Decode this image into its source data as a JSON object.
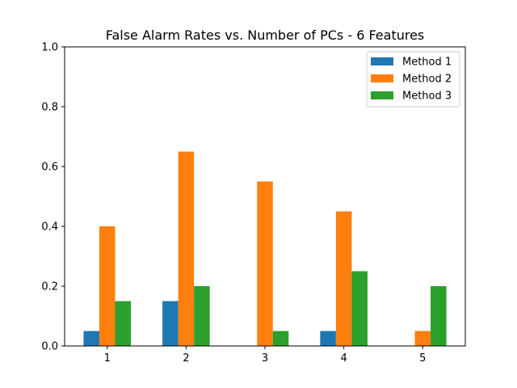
{
  "chart_data": {
    "type": "bar",
    "title": "False Alarm Rates vs. Number of PCs - 6 Features",
    "xlabel": "",
    "ylabel": "",
    "categories": [
      "1",
      "2",
      "3",
      "4",
      "5"
    ],
    "ylim": [
      0,
      1.0
    ],
    "yticks": [
      "0.0",
      "0.2",
      "0.4",
      "0.6",
      "0.8",
      "1.0"
    ],
    "grid": false,
    "legend_position": "top-right",
    "series": [
      {
        "name": "Method 1",
        "color": "#1f77b4",
        "values": [
          0.05,
          0.15,
          0.0,
          0.05,
          0.0
        ]
      },
      {
        "name": "Method 2",
        "color": "#ff7f0e",
        "values": [
          0.4,
          0.65,
          0.55,
          0.45,
          0.05
        ]
      },
      {
        "name": "Method 3",
        "color": "#2ca02c",
        "values": [
          0.15,
          0.2,
          0.05,
          0.25,
          0.2
        ]
      }
    ]
  }
}
